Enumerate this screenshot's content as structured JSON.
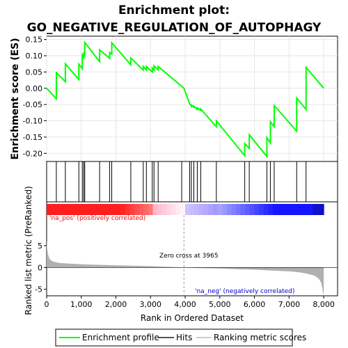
{
  "chart_data": [
    {
      "type": "line",
      "title_line1": "Enrichment plot:",
      "title_line2": "GO_NEGATIVE_REGULATION_OF_AUTOPHAGY",
      "ylabel": "Enrichment score (ES)",
      "xlim": [
        0,
        8400
      ],
      "ylim": [
        -0.225,
        0.16
      ],
      "yticks": [
        0.15,
        0.1,
        0.05,
        0.0,
        -0.05,
        -0.1,
        -0.15,
        -0.2
      ],
      "ytick_labels": [
        "0.15",
        "0.10",
        "0.05",
        "0.00",
        "-0.05",
        "-0.10",
        "-0.15",
        "-0.20"
      ],
      "series": [
        {
          "name": "Enrichment profile",
          "color": "#00ff00",
          "x": [
            0,
            280,
            281,
            540,
            541,
            930,
            931,
            1030,
            1031,
            1070,
            1071,
            1100,
            1101,
            1530,
            1531,
            1820,
            1821,
            1880,
            1881,
            2430,
            2431,
            2790,
            2791,
            2880,
            2881,
            3050,
            3051,
            3100,
            3101,
            3220,
            3221,
            3965,
            4130,
            4180,
            4181,
            4250,
            4251,
            4350,
            4351,
            4450,
            4451,
            4900,
            4901,
            5720,
            5721,
            5850,
            5851,
            6360,
            6361,
            6460,
            6461,
            6570,
            6571,
            7220,
            7221,
            7490,
            7491,
            8000
          ],
          "y": [
            0.0,
            -0.032,
            0.048,
            0.02,
            0.075,
            0.027,
            0.074,
            0.06,
            0.102,
            0.095,
            0.106,
            0.101,
            0.141,
            0.082,
            0.118,
            0.092,
            0.11,
            0.105,
            0.14,
            0.072,
            0.093,
            0.056,
            0.067,
            0.056,
            0.067,
            0.05,
            0.062,
            0.056,
            0.069,
            0.057,
            0.067,
            0.0,
            -0.048,
            -0.055,
            -0.052,
            -0.058,
            -0.055,
            -0.065,
            -0.06,
            -0.068,
            -0.064,
            -0.118,
            -0.1,
            -0.207,
            -0.17,
            -0.185,
            -0.143,
            -0.21,
            -0.152,
            -0.168,
            -0.103,
            -0.118,
            -0.053,
            -0.132,
            -0.03,
            -0.065,
            0.064,
            0.0
          ]
        }
      ]
    },
    {
      "type": "hits",
      "name": "Hits",
      "positions": [
        280,
        540,
        930,
        1030,
        1070,
        1100,
        1530,
        1820,
        1880,
        2430,
        2790,
        2880,
        3050,
        3100,
        3220,
        3900,
        4130,
        4180,
        4250,
        4350,
        4450,
        4900,
        5720,
        5850,
        6360,
        6460,
        6570,
        7220,
        7490
      ]
    },
    {
      "type": "area",
      "name": "Ranking metric scores",
      "ylabel": "Ranked list metric (PreRanked)",
      "xlabel": "Rank in Ordered Dataset",
      "xlim": [
        0,
        8400
      ],
      "ylim": [
        -6.5,
        8.5
      ],
      "xticks": [
        0,
        1000,
        2000,
        3000,
        4000,
        5000,
        6000,
        7000,
        8000
      ],
      "xtick_labels": [
        "0",
        "1,000",
        "2,000",
        "3,000",
        "4,000",
        "5,000",
        "6,000",
        "7,000",
        "8,000"
      ],
      "yticks": [
        5,
        0,
        -5
      ],
      "ytick_labels": [
        "5",
        "0",
        "-5"
      ],
      "x": [
        0,
        10,
        40,
        80,
        150,
        250,
        400,
        700,
        1000,
        1500,
        2000,
        2500,
        3000,
        3500,
        3965,
        4500,
        5000,
        5500,
        6000,
        6500,
        7000,
        7300,
        7500,
        7700,
        7800,
        7880,
        7930,
        7960,
        7980,
        8000
      ],
      "y": [
        6.2,
        4.8,
        3.0,
        2.0,
        1.5,
        1.2,
        1.0,
        0.85,
        0.75,
        0.6,
        0.5,
        0.4,
        0.3,
        0.15,
        0.0,
        -0.15,
        -0.25,
        -0.4,
        -0.5,
        -0.7,
        -0.9,
        -1.1,
        -1.4,
        -1.8,
        -2.2,
        -2.8,
        -3.6,
        -4.8,
        -5.8,
        -6.3
      ],
      "color": "#b0b0b0"
    }
  ],
  "annotations": {
    "pos_label": "'na_pos' (positively correlated)",
    "neg_label": "'na_neg' (negatively correlated)",
    "zero_cross": "Zero cross at 3965",
    "zero_cross_rank": 3965
  },
  "legend": {
    "items": [
      "Enrichment profile",
      "Hits",
      "Ranking metric scores"
    ]
  },
  "colors": {
    "profile": "#00ff00",
    "pos_label": "#ff0000",
    "neg_label": "#0000cc",
    "hit": "#000000",
    "metric": "#b0b0b0"
  }
}
